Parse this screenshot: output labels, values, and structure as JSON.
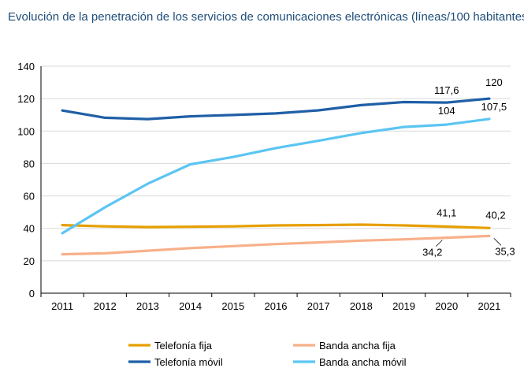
{
  "title": "Evolución de la penetración de los servicios de comunicaciones electrónicas (líneas/100 habitantes)",
  "chart_data": {
    "type": "line",
    "x": [
      "2011",
      "2012",
      "2013",
      "2014",
      "2015",
      "2016",
      "2017",
      "2018",
      "2019",
      "2020",
      "2021"
    ],
    "ylim": [
      0,
      140
    ],
    "yticks": [
      0,
      20,
      40,
      60,
      80,
      100,
      120,
      140
    ],
    "grid": true,
    "legend_position": "bottom",
    "series": [
      {
        "name": "Telefonía fija",
        "color": "#e69f00",
        "values": [
          42.0,
          41.2,
          40.8,
          41.0,
          41.2,
          41.8,
          42.0,
          42.3,
          41.8,
          41.1,
          40.2
        ]
      },
      {
        "name": "Telefonía móvil",
        "color": "#1f5fa6",
        "values": [
          112.7,
          108.2,
          107.4,
          109.1,
          109.9,
          110.9,
          112.8,
          116.0,
          117.9,
          117.6,
          120.0
        ]
      },
      {
        "name": "Banda ancha fija",
        "color": "#f7b08a",
        "values": [
          24.0,
          24.6,
          26.2,
          27.8,
          29.0,
          30.3,
          31.3,
          32.4,
          33.2,
          34.2,
          35.3
        ]
      },
      {
        "name": "Banda ancha móvil",
        "color": "#5bc5f2",
        "values": [
          37.0,
          53.0,
          67.5,
          79.5,
          84.0,
          89.5,
          94.0,
          98.8,
          102.5,
          104.0,
          107.5
        ]
      }
    ],
    "data_labels": [
      {
        "series": 1,
        "index": 9,
        "text": "117,6"
      },
      {
        "series": 1,
        "index": 10,
        "text": "120"
      },
      {
        "series": 3,
        "index": 9,
        "text": "104"
      },
      {
        "series": 3,
        "index": 10,
        "text": "107,5"
      },
      {
        "series": 0,
        "index": 9,
        "text": "41,1"
      },
      {
        "series": 0,
        "index": 10,
        "text": "40,2"
      },
      {
        "series": 2,
        "index": 9,
        "text": "34,2"
      },
      {
        "series": 2,
        "index": 10,
        "text": "35,3"
      }
    ]
  }
}
